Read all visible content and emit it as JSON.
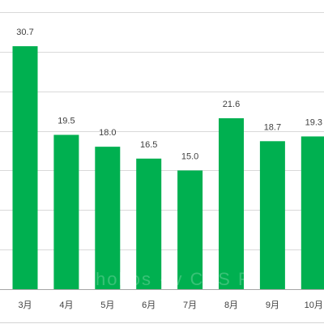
{
  "chart_data": {
    "type": "bar",
    "categories": [
      "3月",
      "4月",
      "5月",
      "6月",
      "7月",
      "8月",
      "9月",
      "10月"
    ],
    "values": [
      30.7,
      19.5,
      18.0,
      16.5,
      15.0,
      21.6,
      18.7,
      19.3
    ],
    "data_labels": [
      "30.7",
      "19.5",
      "18.0",
      "16.5",
      "15.0",
      "21.6",
      "18.7",
      "19.3"
    ],
    "ylim": [
      0,
      35
    ],
    "grid": true,
    "bar_color": "#00b050",
    "gridline_color": "#d9d9d9",
    "axis_color": "#a6a6a6",
    "watermark": "hobos · v CAS FI"
  }
}
